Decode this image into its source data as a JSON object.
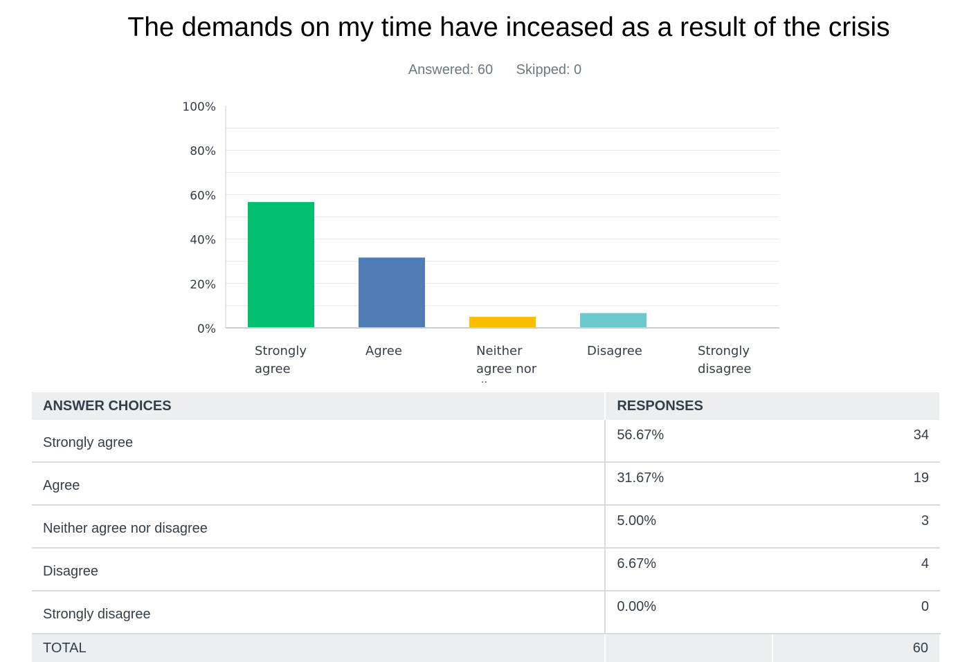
{
  "title": "The demands on my time have inceased as a result of the crisis",
  "stats": {
    "answered": "Answered: 60",
    "skipped": "Skipped: 0"
  },
  "colors": {
    "strongly_agree": "#00bf6f",
    "agree": "#507cb6",
    "neither": "#f9be00",
    "disagree": "#6bc8cd",
    "strongly_disagree": "#e0e0e0",
    "grid": "#e5e5e5",
    "axis": "#cccccc"
  },
  "chart_data": {
    "type": "bar",
    "title": "The demands on my time have inceased as a result of the crisis",
    "categories": [
      "Strongly agree",
      "Agree",
      "Neither agree nor disagree",
      "Disagree",
      "Strongly disagree"
    ],
    "category_label_lines": [
      [
        "Strongly",
        "agree"
      ],
      [
        "Agree"
      ],
      [
        "Neither",
        "agree nor",
        "di..."
      ],
      [
        "Disagree"
      ],
      [
        "Strongly",
        "disagree"
      ]
    ],
    "values": [
      56.67,
      31.67,
      5.0,
      6.67,
      0.0
    ],
    "yticks": [
      "0%",
      "20%",
      "40%",
      "60%",
      "80%",
      "100%"
    ],
    "ylim": [
      0,
      100
    ],
    "grid": true,
    "xlabel": "",
    "ylabel": ""
  },
  "table": {
    "headers": {
      "choices": "ANSWER CHOICES",
      "responses": "RESPONSES"
    },
    "rows": [
      {
        "choice": "Strongly agree",
        "pct": "56.67%",
        "count": "34"
      },
      {
        "choice": "Agree",
        "pct": "31.67%",
        "count": "19"
      },
      {
        "choice": "Neither agree nor disagree",
        "pct": "5.00%",
        "count": "3"
      },
      {
        "choice": "Disagree",
        "pct": "6.67%",
        "count": "4"
      },
      {
        "choice": "Strongly disagree",
        "pct": "0.00%",
        "count": "0"
      }
    ],
    "total": {
      "label": "TOTAL",
      "count": "60"
    }
  }
}
